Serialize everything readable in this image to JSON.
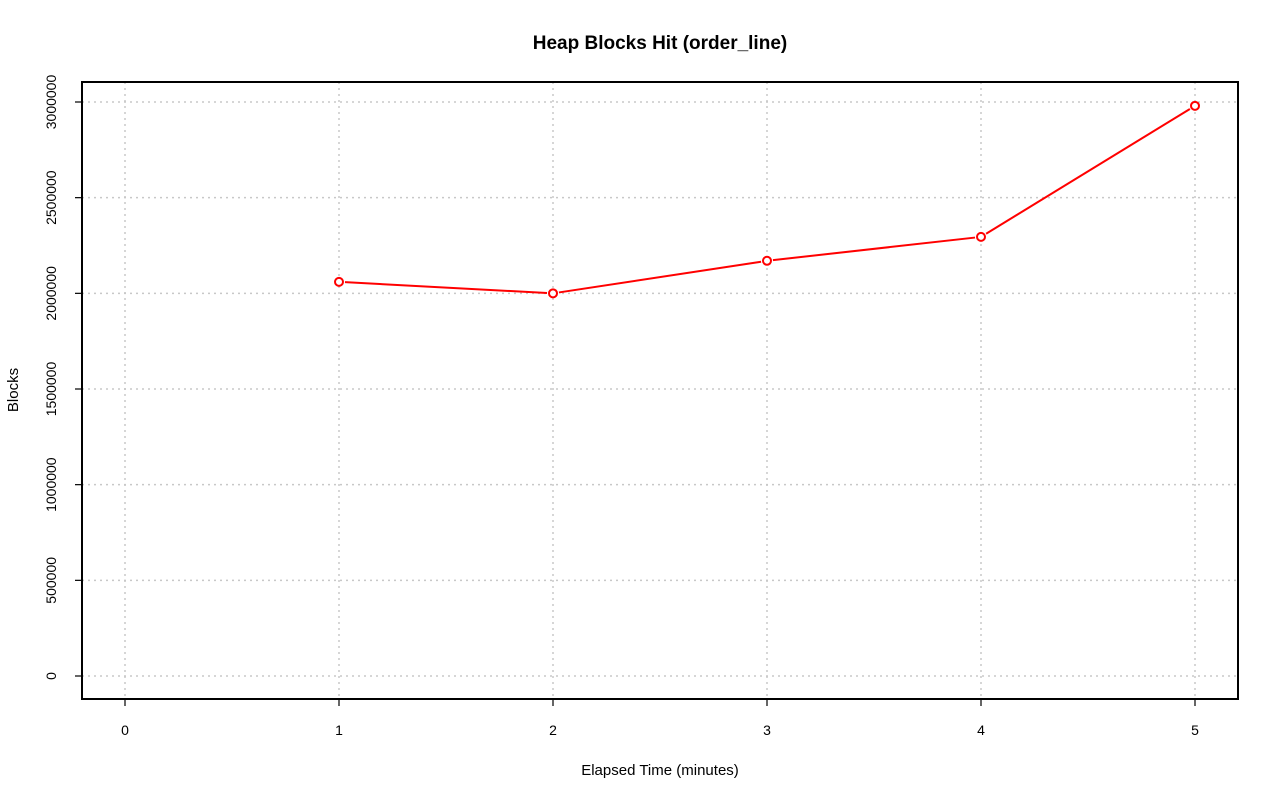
{
  "chart_data": {
    "type": "line",
    "title": "Heap Blocks Hit (order_line)",
    "xlabel": "Elapsed Time (minutes)",
    "ylabel": "Blocks",
    "x": [
      1,
      2,
      3,
      4,
      5
    ],
    "values": [
      2060000,
      2000000,
      2170000,
      2295000,
      2980000
    ],
    "xlim": [
      0,
      5
    ],
    "ylim": [
      0,
      3000000
    ],
    "x_ticks": [
      0,
      1,
      2,
      3,
      4,
      5
    ],
    "y_ticks": [
      0,
      500000,
      1000000,
      1500000,
      2000000,
      2500000,
      3000000
    ],
    "x_tick_labels": [
      "0",
      "1",
      "2",
      "3",
      "4",
      "5"
    ],
    "y_tick_labels": [
      "0",
      "500000",
      "1000000",
      "1500000",
      "2000000",
      "2500000",
      "3000000"
    ],
    "grid": true,
    "series_color": "#ff0000"
  }
}
